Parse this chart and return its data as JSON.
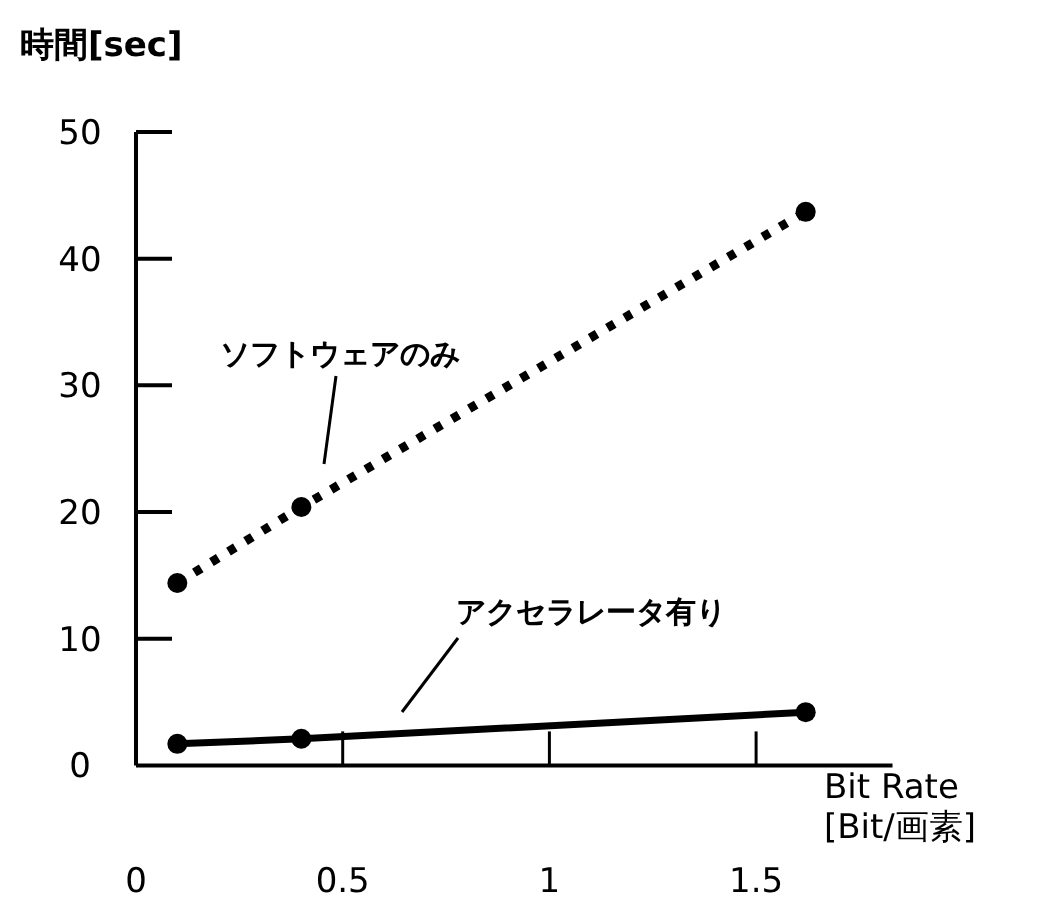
{
  "chart_data": {
    "type": "line",
    "ylabel": "時間[sec]",
    "xlabel": "Bit Rate [Bit/画素]",
    "x": [
      0.1,
      0.4,
      1.62
    ],
    "series": [
      {
        "name": "ソフトウェアのみ",
        "color": "#000000",
        "line_style": "dotted",
        "values": [
          14.4,
          20.4,
          43.7
        ]
      },
      {
        "name": "アクセラレータ有り",
        "color": "#000000",
        "line_style": "solid",
        "values": [
          1.7,
          2.1,
          4.2
        ]
      }
    ],
    "xlim": [
      0,
      1.83
    ],
    "ylim": [
      0,
      50
    ],
    "xticks": [
      0,
      0.5,
      1,
      1.5
    ],
    "yticks": [
      0,
      10,
      20,
      30,
      40,
      50
    ],
    "marker": "circle",
    "grid": false,
    "legend": false
  }
}
